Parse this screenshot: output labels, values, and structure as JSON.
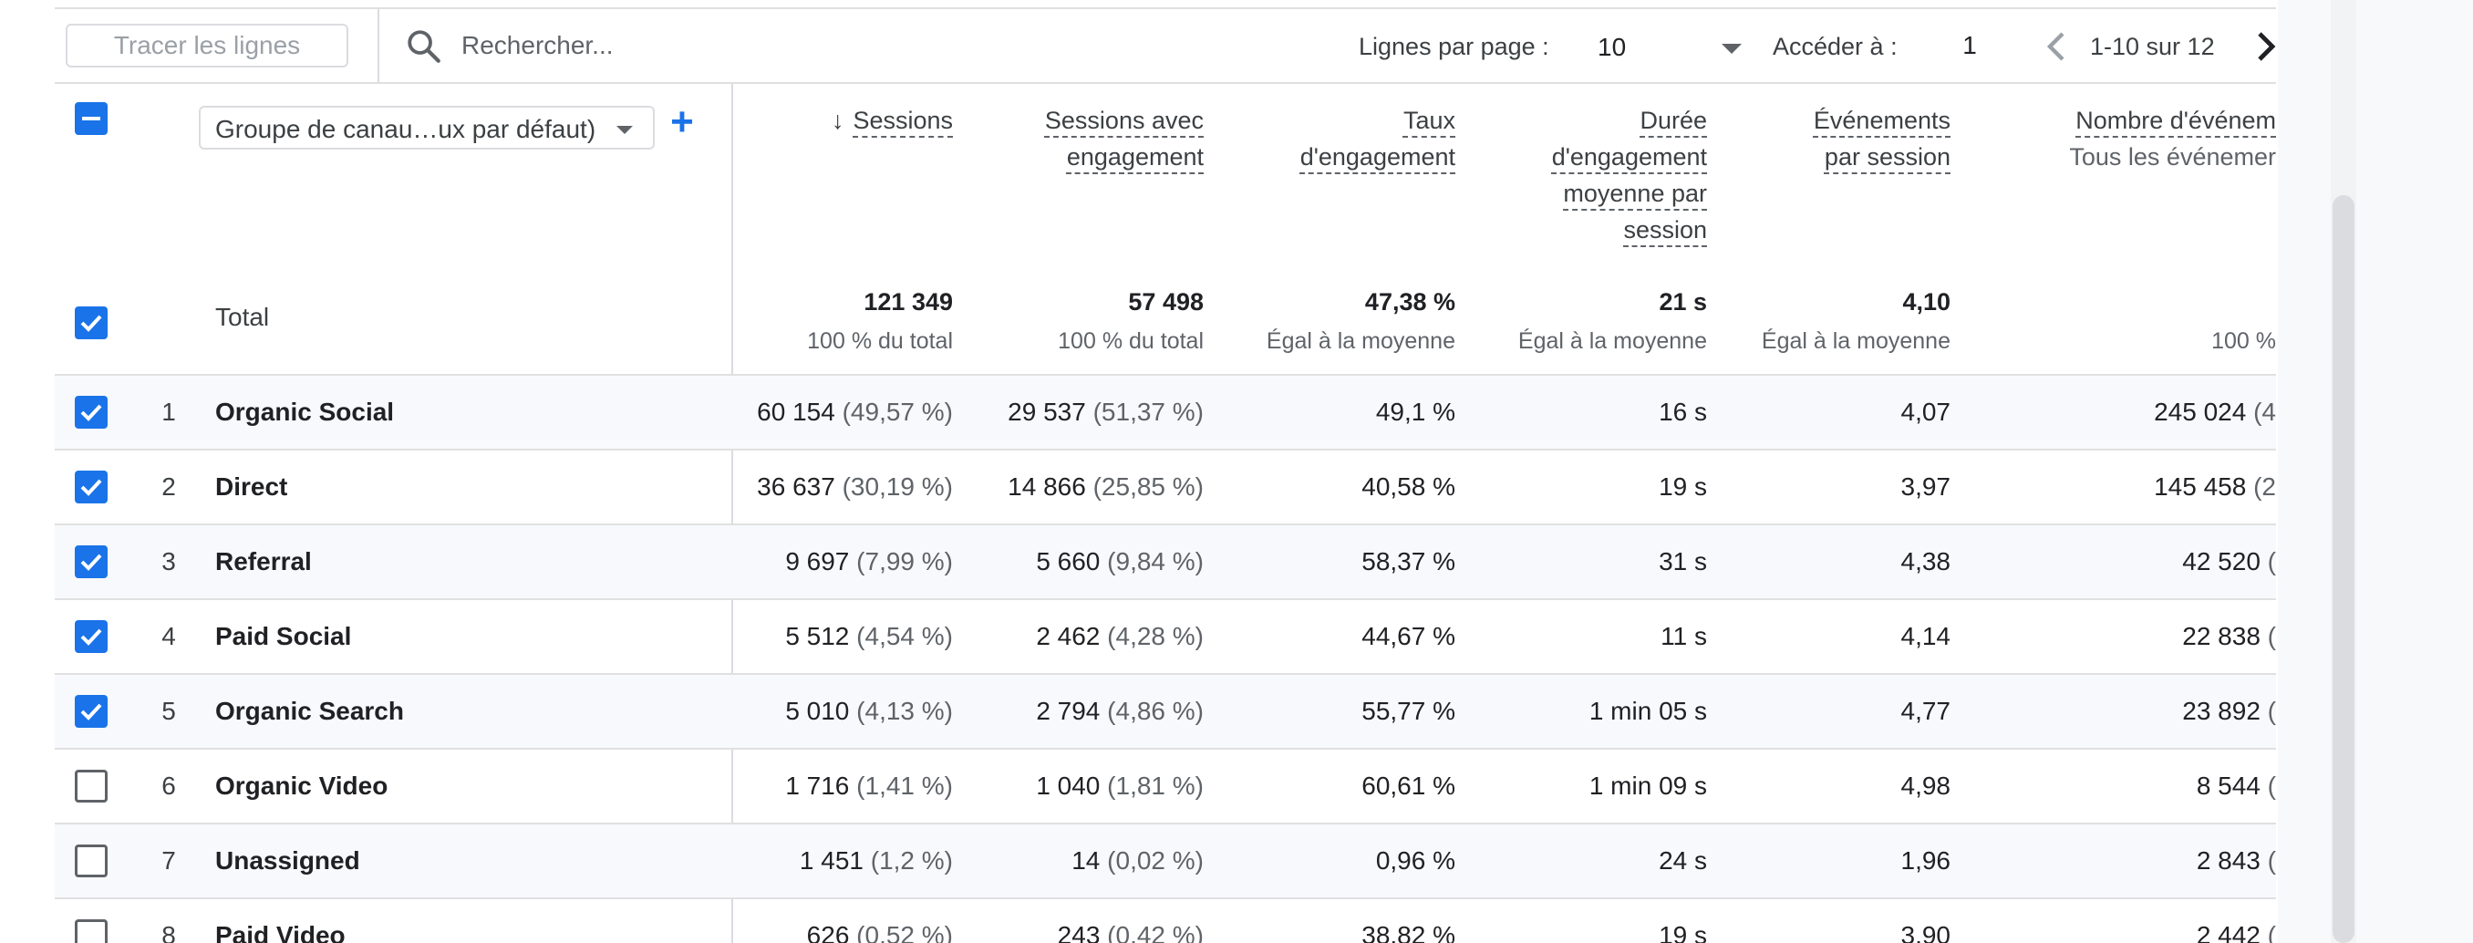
{
  "toolbar": {
    "plot_rows": "Tracer les lignes",
    "search_placeholder": "Rechercher...",
    "rows_per_page_label": "Lignes par page :",
    "rows_per_page_value": "10",
    "goto_label": "Accéder à :",
    "goto_value": "1",
    "range": "1-10 sur 12"
  },
  "table": {
    "dimension_select": "Groupe de canau…ux par défaut)",
    "total_label": "Total",
    "columns": [
      {
        "lines": [
          "Sessions"
        ],
        "sorted": true,
        "total": "121 349",
        "total_sub": "100 % du total"
      },
      {
        "lines": [
          "Sessions avec",
          "engagement"
        ],
        "total": "57 498",
        "total_sub": "100 % du total"
      },
      {
        "lines": [
          "Taux",
          "d'engagement"
        ],
        "total": "47,38 %",
        "total_sub": "Égal à la moyenne"
      },
      {
        "lines": [
          "Durée",
          "d'engagement",
          "moyenne par",
          "session"
        ],
        "total": "21 s",
        "total_sub": "Égal à la moyenne"
      },
      {
        "lines": [
          "Événements",
          "par session"
        ],
        "total": "4,10",
        "total_sub": "Égal à la moyenne"
      },
      {
        "lines": [
          "Nombre d'événem"
        ],
        "sub": "Tous les événemer",
        "total": "",
        "total_sub": "100 %"
      }
    ],
    "rows": [
      {
        "idx": "1",
        "name": "Organic Social",
        "checked": true,
        "cells": [
          [
            "60 154",
            "(49,57 %)"
          ],
          [
            "29 537",
            "(51,37 %)"
          ],
          [
            "49,1 %",
            ""
          ],
          [
            "16 s",
            ""
          ],
          [
            "4,07",
            ""
          ],
          [
            "245 024",
            "(4"
          ]
        ]
      },
      {
        "idx": "2",
        "name": "Direct",
        "checked": true,
        "cells": [
          [
            "36 637",
            "(30,19 %)"
          ],
          [
            "14 866",
            "(25,85 %)"
          ],
          [
            "40,58 %",
            ""
          ],
          [
            "19 s",
            ""
          ],
          [
            "3,97",
            ""
          ],
          [
            "145 458",
            "(2"
          ]
        ]
      },
      {
        "idx": "3",
        "name": "Referral",
        "checked": true,
        "cells": [
          [
            "9 697",
            "(7,99 %)"
          ],
          [
            "5 660",
            "(9,84 %)"
          ],
          [
            "58,37 %",
            ""
          ],
          [
            "31 s",
            ""
          ],
          [
            "4,38",
            ""
          ],
          [
            "42 520",
            "("
          ]
        ]
      },
      {
        "idx": "4",
        "name": "Paid Social",
        "checked": true,
        "cells": [
          [
            "5 512",
            "(4,54 %)"
          ],
          [
            "2 462",
            "(4,28 %)"
          ],
          [
            "44,67 %",
            ""
          ],
          [
            "11 s",
            ""
          ],
          [
            "4,14",
            ""
          ],
          [
            "22 838",
            "("
          ]
        ]
      },
      {
        "idx": "5",
        "name": "Organic Search",
        "checked": true,
        "cells": [
          [
            "5 010",
            "(4,13 %)"
          ],
          [
            "2 794",
            "(4,86 %)"
          ],
          [
            "55,77 %",
            ""
          ],
          [
            "1 min 05 s",
            ""
          ],
          [
            "4,77",
            ""
          ],
          [
            "23 892",
            "("
          ]
        ]
      },
      {
        "idx": "6",
        "name": "Organic Video",
        "checked": false,
        "cells": [
          [
            "1 716",
            "(1,41 %)"
          ],
          [
            "1 040",
            "(1,81 %)"
          ],
          [
            "60,61 %",
            ""
          ],
          [
            "1 min 09 s",
            ""
          ],
          [
            "4,98",
            ""
          ],
          [
            "8 544",
            "("
          ]
        ]
      },
      {
        "idx": "7",
        "name": "Unassigned",
        "checked": false,
        "cells": [
          [
            "1 451",
            "(1,2 %)"
          ],
          [
            "14",
            "(0,02 %)"
          ],
          [
            "0,96 %",
            ""
          ],
          [
            "24 s",
            ""
          ],
          [
            "1,96",
            ""
          ],
          [
            "2 843",
            "("
          ]
        ]
      },
      {
        "idx": "8",
        "name": "Paid Video",
        "checked": false,
        "cells": [
          [
            "626",
            "(0,52 %)"
          ],
          [
            "243",
            "(0,42 %)"
          ],
          [
            "38,82 %",
            ""
          ],
          [
            "19 s",
            ""
          ],
          [
            "3,90",
            ""
          ],
          [
            "2 442",
            "("
          ]
        ]
      }
    ]
  },
  "colors": {
    "accent": "#1a73e8",
    "row_shade": "#f8f9fc",
    "border": "#e0e0e0"
  }
}
